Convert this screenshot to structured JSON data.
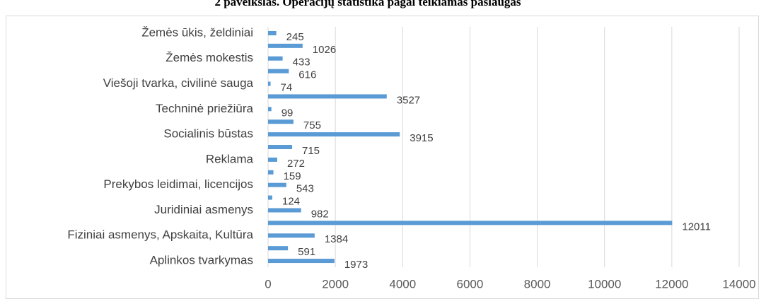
{
  "chart_data": {
    "type": "bar",
    "orientation": "horizontal",
    "title": "2 paveikslas. Operacijų statistika pagal teikiamas paslaugas",
    "categories": [
      "Žemės ūkis, želdiniai",
      null,
      "Žemės mokestis",
      null,
      "Viešoji tvarka, civilinė sauga",
      null,
      "Techninė priežiūra",
      null,
      "Socialinis būstas",
      null,
      "Reklama",
      null,
      "Prekybos leidimai, licencijos",
      null,
      "Juridiniai asmenys",
      null,
      "Fiziniai asmenys, Apskaita, Kultūra",
      null,
      "Aplinkos tvarkymas"
    ],
    "values": [
      245,
      1026,
      433,
      616,
      74,
      3527,
      99,
      755,
      3915,
      715,
      272,
      159,
      543,
      124,
      982,
      12011,
      1384,
      591,
      1973
    ],
    "color": "#5b9bd5",
    "xlim": [
      0,
      14000
    ],
    "xticks": [
      0,
      2000,
      4000,
      6000,
      8000,
      10000,
      12000,
      14000
    ],
    "grid": true
  }
}
